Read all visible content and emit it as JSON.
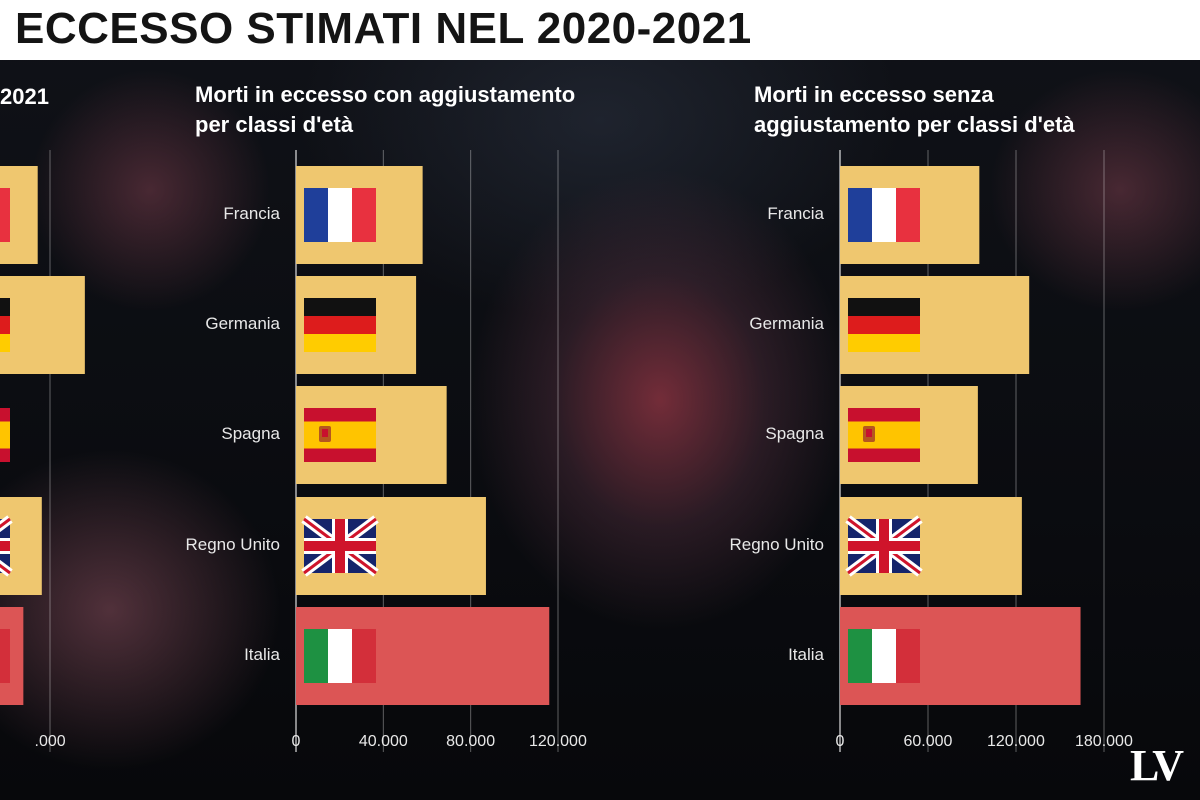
{
  "title": "N ECCESSO STIMATI NEL 2020-2021",
  "logo": "LV",
  "chart_data": [
    {
      "type": "bar",
      "orientation": "horizontal",
      "title": "2021",
      "categories": [
        "Francia",
        "Germania",
        "Spagna",
        "Regno Unito",
        "Italia"
      ],
      "values": [
        34000,
        57000,
        10000,
        36000,
        27000
      ],
      "xlim": [
        0,
        200000
      ],
      "xticks": [
        {
          "v": 40000,
          "label": ".000"
        }
      ],
      "colors": [
        "#efc76f",
        "#efc76f",
        "#efc76f",
        "#efc76f",
        "#dc5555"
      ]
    },
    {
      "type": "bar",
      "orientation": "horizontal",
      "title_lines": [
        "Morti in eccesso con aggiustamento",
        "per classi d'età"
      ],
      "categories": [
        "Francia",
        "Germania",
        "Spagna",
        "Regno Unito",
        "Italia"
      ],
      "values": [
        58000,
        55000,
        69000,
        87000,
        116000
      ],
      "xlim": [
        0,
        120000
      ],
      "xticks": [
        {
          "v": 0,
          "label": "0"
        },
        {
          "v": 40000,
          "label": "40.000"
        },
        {
          "v": 80000,
          "label": "80.000"
        },
        {
          "v": 120000,
          "label": "120.000"
        }
      ],
      "colors": [
        "#efc76f",
        "#efc76f",
        "#efc76f",
        "#efc76f",
        "#dc5555"
      ]
    },
    {
      "type": "bar",
      "orientation": "horizontal",
      "title_lines": [
        "Morti in eccesso senza",
        "aggiustamento  per classi d'età"
      ],
      "categories": [
        "Francia",
        "Germania",
        "Spagna",
        "Regno Unito",
        "Italia"
      ],
      "values": [
        95000,
        129000,
        94000,
        124000,
        164000
      ],
      "xlim": [
        0,
        180000
      ],
      "xticks": [
        {
          "v": 0,
          "label": "0"
        },
        {
          "v": 60000,
          "label": "60.000"
        },
        {
          "v": 120000,
          "label": "120.000"
        },
        {
          "v": 180000,
          "label": "180.000"
        }
      ],
      "colors": [
        "#efc76f",
        "#efc76f",
        "#efc76f",
        "#efc76f",
        "#dc5555"
      ]
    }
  ],
  "flags": [
    "flag-france",
    "flag-germany",
    "flag-spain",
    "flag-uk",
    "flag-italy"
  ]
}
